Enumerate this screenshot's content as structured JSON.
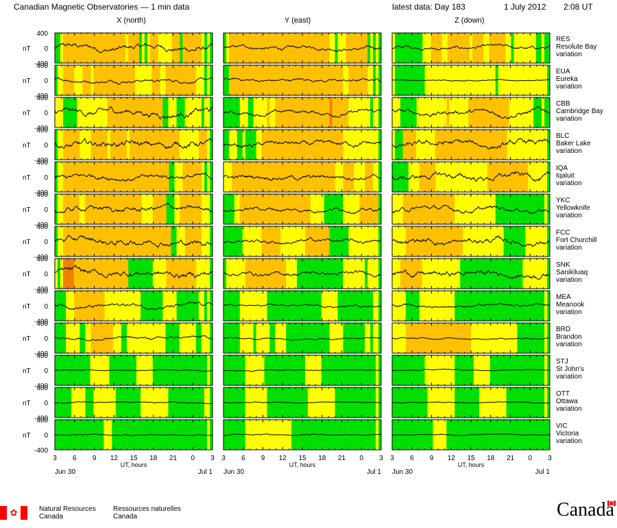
{
  "header": {
    "title": "Canadian Magnetic Observatories — 1 min data",
    "latest": "latest data: Day 183",
    "date": "1 July 2012",
    "time": "2:08 UT"
  },
  "chart_data": {
    "type": "line",
    "columns": [
      {
        "key": "x",
        "label": "X (north)"
      },
      {
        "key": "y",
        "label": "Y (east)"
      },
      {
        "key": "z",
        "label": "Z (down)"
      }
    ],
    "unit": "nT",
    "ylim": [
      -400,
      400
    ],
    "yticks": [
      400,
      0,
      -400
    ],
    "x_ticks": [
      "3",
      "6",
      "9",
      "12",
      "15",
      "18",
      "21",
      "0",
      "3"
    ],
    "x_label": "UT, hours",
    "x_date_start": "Jun 30",
    "x_date_end": "Jul  1",
    "activity_colors": {
      "quiet": "#00e000",
      "unsettled": "#ffff00",
      "active": "#ffc000",
      "storm": "#f08000"
    },
    "stations": [
      {
        "code": "RES",
        "name": "Resolute Bay",
        "suffix": "variation",
        "amp": [
          220,
          140,
          130
        ],
        "levels": [
          "qqyoooooooooooooooooooooooyooooqyqyoooyyyyyoooqoooooooyqyq",
          "qyoooooooooooooooooooooooooooooooooooooyyqyyyooooooooqyqyq",
          "yqqqqqqqqqqyyyooooyyooooooooyooooyyooooooyyqyyyyyyyyqqyqq"
        ]
      },
      {
        "code": "EUA",
        "name": "Eureka",
        "suffix": "variation",
        "amp": [
          130,
          120,
          40
        ],
        "levels": [
          "qyyooooyyyoooyoooooooooooooooyyyyyyoooyyoooooooooooyyyqyq",
          "qqooooooooooooooooooooooooooooooooooooooooooyyoooooooyyqyq",
          "yqqqqqqqqqqqyyyyyyyyyyyyyyyyyyyyyyyyyyqyyyyyyyyyyyyyyyyyyq"
        ]
      },
      {
        "code": "CBB",
        "name": "Cambridge Bay",
        "suffix": "variation",
        "amp": [
          250,
          160,
          200
        ],
        "levels": [
          "yyyqqqqqyyyyyyyyyyyooooooooooooooooooooqqyyyqqqyyyyyyqyyq",
          "qqqqqqyyyqqyyyyyoyyoooooooooooooooooooorooooooyyyyyyyyqyyq",
          "yyyqqqqqqyyyyyyyyyyyoyyyyyyyoooooooooooooooyyyyyyyyyqqqyqq"
        ]
      },
      {
        "code": "BLC",
        "name": "Baker Lake",
        "suffix": "variation",
        "amp": [
          260,
          190,
          230
        ],
        "levels": [
          "qyyooooooyyyyooooooyooooooyooooooooooooooooooyyyyyyyoooyq",
          "qqyyyqqyqqqqyyooooooooooooooooooooooooooooooyyyyyyyyyyyyyq",
          "yqqqoooooyyyyyyyoooooooooooooooooooooooooooyyyyyyyyyyyyyyyq"
        ]
      },
      {
        "code": "IQA",
        "name": "Iqaluit",
        "suffix": "variation",
        "amp": [
          200,
          180,
          240
        ],
        "levels": [
          "qyyoooooooooooooooooooooooooooooooooooooooqqyyyoooooooyqyq",
          "yyyooooooooooooooooooooooooooooooooooooooyyyooooyyyyoooyyq",
          "qqqqqqyyyyooooooyyyyyyyyyyyyyyyyyyyoooooooooooooooyyyyyyyq"
        ]
      },
      {
        "code": "YKC",
        "name": "Yellowknife",
        "suffix": "variation",
        "amp": [
          220,
          150,
          180
        ],
        "levels": [
          "qyyooooooyyoooooooooooooooooooooyyyyoooooqqqyyooooooooyyyq",
          "qqqqyyooooooooooooooooooooooooooyyyyyqqqqqqqyyyyyyoooooooq",
          "yyyyoooooooooooooooooooyyyyyyyyyyyyyyyqqqqqqqqqqqqqqqqqqyq"
        ]
      },
      {
        "code": "FCC",
        "name": "Fort Churchill",
        "suffix": "variation",
        "amp": [
          240,
          150,
          220
        ],
        "levels": [
          "qyyoooooooooooooooooooooooooooooooooooooooqqyyyooooooyyyq",
          "qqqqqqqyyyyyyyoooooooyyyyyyyyyoooooooooqqqqqqqyyyyyyyyyyyq",
          "yyyyyoooooooooooooooooooooyyyyyyyyyyyyyyyqqqqqqqqyyyyyyyyq"
        ]
      },
      {
        "code": "SNK",
        "name": "Sanikiluaq",
        "suffix": "variation",
        "amp": [
          250,
          160,
          230
        ],
        "levels": [
          "yqyrrrrooooooooooooooooooooqqqqqqqqqyyyyyoooooooooooyyyyyq",
          "qyyyyyyyoooooooooooooooyyyyqqqqqqqqqqqqqqqqqyyyyyyyyqyyyyq",
          "yyyooooooooyyyyyyyyyyyyyyqqqqqqqqqqqqqqqqqqqqqqqyyyyyyyyyq"
        ]
      },
      {
        "code": "MEA",
        "name": "Meanook",
        "suffix": "variation",
        "amp": [
          150,
          80,
          110
        ],
        "levels": [
          "qqqqyyyoooooooooooyyyyyyyyyyyyyqqqqqqqqyyyyyqqqqqqqqyyqyq",
          "qqqqqqyyyyyyyyyyqqqqqqqqqqqqqqqqqqqqyyyyyyqqqqqqqqqqqqqyyq",
          "yyyyyqqqqqyyyyyyyyyyyyyqqqqqqqqqqqqqqqqqqqqqqqqqqqqqqqqqyq"
        ]
      },
      {
        "code": "BRD",
        "name": "Brandon",
        "suffix": "variation",
        "amp": [
          100,
          60,
          60
        ],
        "levels": [
          "qqqqyyyyyqqyyooooooooyyyqqyyyyyyyyyyyyyyqqqqqyyyyyyqqyyyq",
          "qqqqqqyyyyyqyyyyyqqyyyyqqqqqqqqqqqqqqqqyyyyyqqqqqqqqyyqyyq",
          "yyyyyooooooooooooooooooooooooyyyyyyyyyyyyyyyyyqqqqqqqqqqyq"
        ]
      },
      {
        "code": "STJ",
        "name": "St John's",
        "suffix": "variation",
        "amp": [
          40,
          40,
          40
        ],
        "levels": [
          "qqqqqqqqqqqqqyyyyyyyqqqqqqqqqqyyyyyyqqqqqqqqqqqqqqqqqqqqyq",
          "qqqqqqqqyyyyyyyqqqqqqqqqqqqqqqyyyyyyqqqqqqqqqqqqqqqqqqqqyq",
          "qqqqqqqqqqqqyyyyyyyyyyyqqqqqqqyyyyyyqqqqqqqqqqqqqqqqqqqqyq"
        ]
      },
      {
        "code": "OTT",
        "name": "Ottawa",
        "suffix": "variation",
        "amp": [
          40,
          30,
          30
        ],
        "levels": [
          "qqqqqqyyyyyqqqyyyyyyyyqqqqqqqqqyyyyyyyyyyqqqqqqqqqqqqqyyq",
          "qqqqqqqqyyyyyyyyqqqqqqqqqqqqqqqyyyyyyyyyyqqqqqqqqqqqqqqqyq",
          "qqqqqqqqqqqqqyyyyyyyyyyqqqqqqqqqyyyyyyyyyyqqqqqqqqqqqqqqyq"
        ]
      },
      {
        "code": "VIC",
        "name": "Victoria",
        "suffix": "variation",
        "amp": [
          40,
          40,
          40
        ],
        "levels": [
          "qqqqqqqqqqqqqqqqqqyyyqqqqqqqqqqqqqqqqqqqqqqqqqqqqqqqqqqqyq",
          "qqqqqqqqyyyyyyyyyyyyyyyyyqqqqqqqqqqqqqqqqqqqqqqqqqqqqqqqyq",
          "qqqqqqqqqqqqqqqyyyyyqqqqqqqqqqqqqqqqqqqqqqqqqqqqqqqqqqqqqq"
        ]
      }
    ]
  },
  "footer": {
    "dept_en_1": "Natural Resources",
    "dept_en_2": "Canada",
    "dept_fr_1": "Ressources naturelles",
    "dept_fr_2": "Canada",
    "wordmark": "Canada"
  }
}
